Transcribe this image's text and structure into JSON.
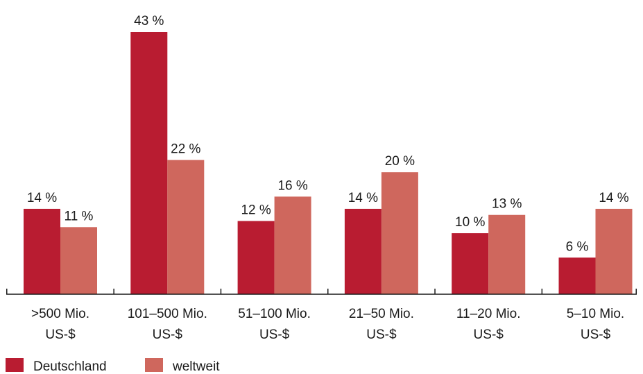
{
  "chart_data": {
    "type": "bar",
    "categories": [
      [
        ">500 Mio.",
        "US-$"
      ],
      [
        "101–500 Mio.",
        "US-$"
      ],
      [
        "51–100 Mio.",
        "US-$"
      ],
      [
        "21–50 Mio.",
        "US-$"
      ],
      [
        "11–20 Mio.",
        "US-$"
      ],
      [
        "5–10 Mio.",
        "US-$"
      ]
    ],
    "series": [
      {
        "name": "Deutschland",
        "color": "#b91c31",
        "values": [
          14,
          43,
          12,
          14,
          10,
          6
        ],
        "labels": [
          "14 %",
          "43 %",
          "12 %",
          "14 %",
          "10 %",
          "6 %"
        ]
      },
      {
        "name": "weltweit",
        "color": "#cf675d",
        "values": [
          11,
          22,
          16,
          20,
          13,
          14
        ],
        "labels": [
          "11 %",
          "22 %",
          "16 %",
          "20 %",
          "13 %",
          "14 %"
        ]
      }
    ],
    "ylim": [
      0,
      43
    ],
    "grid": false,
    "legend": "bottom-left"
  }
}
